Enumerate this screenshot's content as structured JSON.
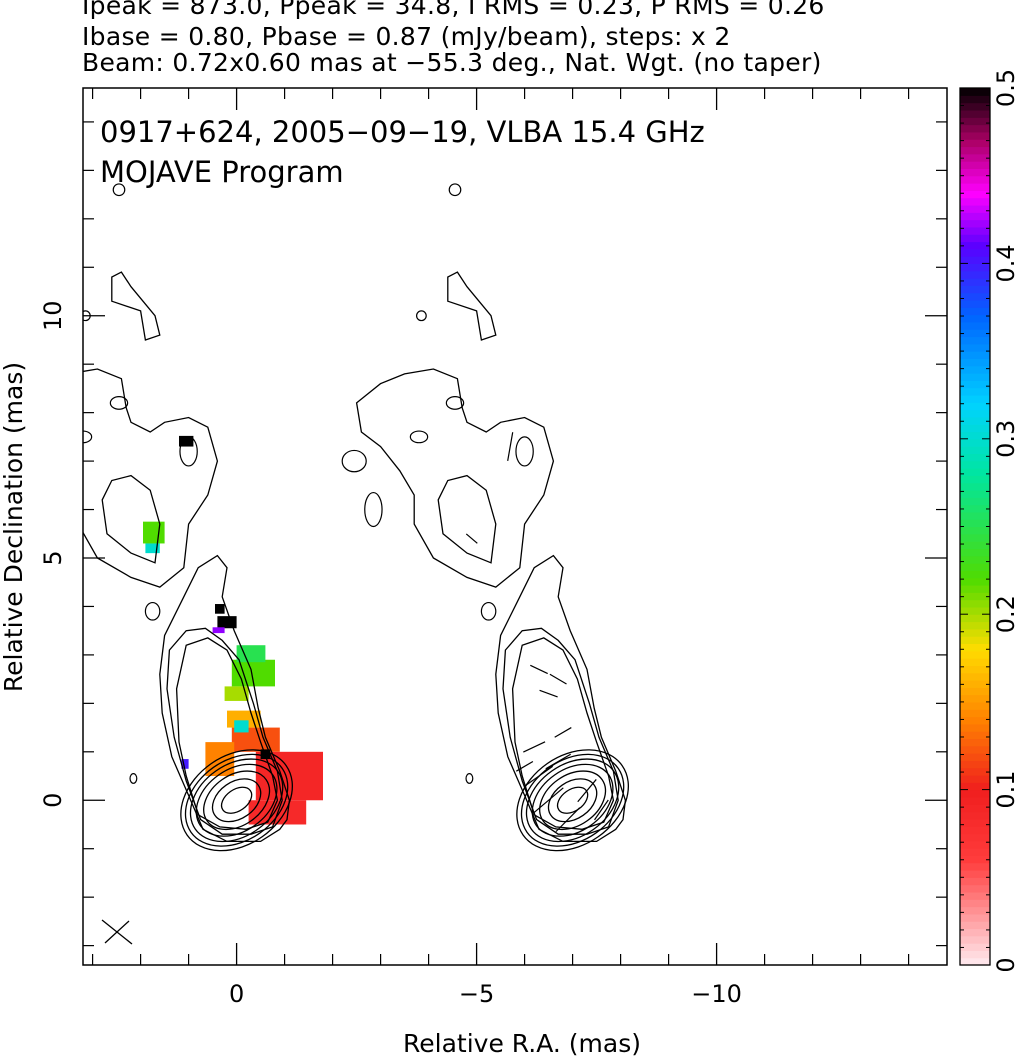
{
  "header": {
    "line1": "Ipeak = 873.0, Ppeak = 34.8, I RMS = 0.23, P RMS = 0.26",
    "line2": "Ibase = 0.80, Pbase = 0.87 (mJy/beam), steps: x 2",
    "line3": "Beam: 0.72x0.60 mas at −55.3 deg., Nat. Wgt. (no taper)"
  },
  "plot_labels": {
    "source": "0917+624, 2005−09−19, VLBA 15.4 GHz",
    "program": "MOJAVE Program"
  },
  "chart_data": {
    "type": "heatmap",
    "xlabel": "Relative R.A. (mas)",
    "ylabel": "Relative Declination (mas)",
    "xlim": [
      3.2,
      -14.8
    ],
    "ylim": [
      -3.4,
      14.7
    ],
    "x_ticks": [
      {
        "value": 0,
        "label": "0"
      },
      {
        "value": -5,
        "label": "−5"
      },
      {
        "value": -10,
        "label": "−10"
      }
    ],
    "y_ticks": [
      {
        "value": 0,
        "label": "0"
      },
      {
        "value": 5,
        "label": "5"
      },
      {
        "value": 10,
        "label": "10"
      }
    ],
    "colorbar": {
      "min": 0,
      "max": 0.5,
      "ticks": [
        {
          "value": 0,
          "label": "0"
        },
        {
          "value": 0.1,
          "label": "0.1"
        },
        {
          "value": 0.2,
          "label": "0.2"
        },
        {
          "value": 0.3,
          "label": "0.3"
        },
        {
          "value": 0.4,
          "label": "0.4"
        },
        {
          "value": 0.5,
          "label": "0.5"
        }
      ]
    },
    "panel_offset_x": -7,
    "core_contour_levels": [
      {
        "a": 0.35,
        "b": 0.22
      },
      {
        "a": 0.55,
        "b": 0.38
      },
      {
        "a": 0.75,
        "b": 0.52
      },
      {
        "a": 0.92,
        "b": 0.64
      },
      {
        "a": 1.05,
        "b": 0.74
      },
      {
        "a": 1.16,
        "b": 0.83
      },
      {
        "a": 1.26,
        "b": 0.92
      }
    ],
    "jet_contours": [
      [
        [
          -0.9,
          -0.6
        ],
        [
          -0.5,
          -0.85
        ],
        [
          0.2,
          -0.85
        ],
        [
          0.7,
          -0.6
        ],
        [
          1.0,
          0.1
        ],
        [
          1.35,
          0.9
        ],
        [
          1.55,
          1.8
        ],
        [
          1.6,
          2.6
        ],
        [
          1.5,
          3.4
        ],
        [
          1.1,
          4.2
        ],
        [
          0.8,
          4.8
        ],
        [
          0.4,
          5.05
        ],
        [
          0.2,
          4.8
        ],
        [
          0.3,
          4.2
        ],
        [
          0.05,
          3.5
        ],
        [
          -0.3,
          2.7
        ],
        [
          -0.45,
          1.9
        ],
        [
          -0.6,
          1.3
        ],
        [
          -0.9,
          0.6
        ],
        [
          -1.1,
          0.0
        ],
        [
          -1.05,
          -0.4
        ]
      ],
      [
        [
          -0.75,
          -0.55
        ],
        [
          -0.3,
          -0.7
        ],
        [
          0.3,
          -0.7
        ],
        [
          0.75,
          -0.4
        ],
        [
          1.05,
          0.4
        ],
        [
          1.3,
          1.3
        ],
        [
          1.45,
          2.3
        ],
        [
          1.4,
          3.1
        ],
        [
          1.05,
          3.5
        ],
        [
          0.65,
          3.55
        ],
        [
          0.3,
          3.3
        ],
        [
          -0.05,
          2.9
        ],
        [
          -0.35,
          2.0
        ],
        [
          -0.55,
          1.3
        ],
        [
          -0.85,
          0.6
        ],
        [
          -0.95,
          0.0
        ]
      ],
      [
        [
          -0.65,
          -0.45
        ],
        [
          -0.2,
          -0.6
        ],
        [
          0.35,
          -0.55
        ],
        [
          0.8,
          -0.3
        ],
        [
          1.05,
          0.5
        ],
        [
          1.2,
          1.2
        ],
        [
          1.25,
          2.3
        ],
        [
          1.05,
          3.2
        ],
        [
          0.6,
          3.35
        ],
        [
          0.2,
          3.1
        ],
        [
          -0.1,
          2.5
        ],
        [
          -0.3,
          1.8
        ],
        [
          -0.5,
          1.2
        ],
        [
          -0.75,
          0.5
        ],
        [
          -0.85,
          0.0
        ]
      ],
      [
        [
          1.1,
          4.8
        ],
        [
          1.6,
          4.4
        ],
        [
          2.2,
          4.6
        ],
        [
          2.9,
          5.0
        ],
        [
          3.3,
          5.7
        ],
        [
          3.3,
          6.3
        ],
        [
          3.6,
          6.8
        ],
        [
          4.0,
          7.3
        ],
        [
          4.4,
          7.6
        ],
        [
          4.5,
          8.2
        ],
        [
          4.0,
          8.6
        ],
        [
          3.5,
          8.8
        ],
        [
          2.9,
          8.9
        ],
        [
          2.4,
          8.7
        ],
        [
          2.3,
          8.1
        ],
        [
          2.2,
          7.8
        ],
        [
          1.8,
          7.6
        ],
        [
          1.5,
          7.8
        ],
        [
          1.0,
          7.9
        ],
        [
          0.6,
          7.7
        ],
        [
          0.4,
          7.0
        ],
        [
          0.6,
          6.3
        ],
        [
          1.0,
          5.7
        ]
      ],
      [
        [
          1.7,
          4.9
        ],
        [
          2.2,
          5.1
        ],
        [
          2.7,
          5.5
        ],
        [
          2.8,
          6.2
        ],
        [
          2.6,
          6.6
        ],
        [
          2.2,
          6.7
        ],
        [
          1.8,
          6.4
        ],
        [
          1.6,
          5.7
        ]
      ],
      [
        [
          2.0,
          10.1
        ],
        [
          2.6,
          10.3
        ],
        [
          2.6,
          10.8
        ],
        [
          2.4,
          10.9
        ],
        [
          2.2,
          10.6
        ],
        [
          1.7,
          10.0
        ],
        [
          1.6,
          9.6
        ],
        [
          1.9,
          9.5
        ]
      ]
    ],
    "small_islands": [
      {
        "x": 1.0,
        "y": 7.2,
        "rx": 0.18,
        "ry": 0.3
      },
      {
        "x": 2.45,
        "y": 8.2,
        "rx": 0.18,
        "ry": 0.13
      },
      {
        "x": 3.2,
        "y": 7.5,
        "rx": 0.18,
        "ry": 0.12
      },
      {
        "x": 4.55,
        "y": 7.0,
        "rx": 0.25,
        "ry": 0.22
      },
      {
        "x": 4.15,
        "y": 6.0,
        "rx": 0.18,
        "ry": 0.35
      },
      {
        "x": 1.75,
        "y": 3.9,
        "rx": 0.15,
        "ry": 0.18
      },
      {
        "x": 3.15,
        "y": 10.0,
        "rx": 0.1,
        "ry": 0.1
      },
      {
        "x": 2.45,
        "y": 12.6,
        "rx": 0.12,
        "ry": 0.12
      },
      {
        "x": 2.15,
        "y": 0.45,
        "rx": 0.07,
        "ry": 0.1
      }
    ],
    "pol_pixels": [
      {
        "x": -0.4,
        "y": 0.0,
        "w": 1.4,
        "h": 1.0,
        "value": 0.09
      },
      {
        "x": -0.25,
        "y": -0.5,
        "w": 1.2,
        "h": 0.5,
        "value": 0.085
      },
      {
        "x": 0.1,
        "y": 1.0,
        "w": 1.0,
        "h": 0.5,
        "value": 0.12
      },
      {
        "x": 0.2,
        "y": 1.5,
        "w": 0.7,
        "h": 0.35,
        "value": 0.16
      },
      {
        "x": 0.65,
        "y": 0.5,
        "w": 0.6,
        "h": 0.7,
        "value": 0.14
      },
      {
        "x": 0.05,
        "y": 1.4,
        "w": 0.3,
        "h": 0.25,
        "value": 0.3
      },
      {
        "x": 0.1,
        "y": 2.35,
        "w": 0.9,
        "h": 0.55,
        "value": 0.22
      },
      {
        "x": 0.0,
        "y": 2.85,
        "w": 0.6,
        "h": 0.35,
        "value": 0.25
      },
      {
        "x": 0.25,
        "y": 2.05,
        "w": 0.5,
        "h": 0.3,
        "value": 0.2
      },
      {
        "x": 0.4,
        "y": 3.55,
        "w": 0.4,
        "h": 0.25,
        "value": 0.5
      },
      {
        "x": 0.45,
        "y": 3.85,
        "w": 0.2,
        "h": 0.2,
        "value": 0.5
      },
      {
        "x": 0.5,
        "y": 3.45,
        "w": 0.25,
        "h": 0.12,
        "value": 0.42
      },
      {
        "x": -0.5,
        "y": 0.85,
        "w": 0.2,
        "h": 0.2,
        "value": 0.5
      },
      {
        "x": 1.2,
        "y": 7.3,
        "w": 0.3,
        "h": 0.22,
        "value": 0.5
      },
      {
        "x": 1.95,
        "y": 5.3,
        "w": 0.45,
        "h": 0.45,
        "value": 0.22
      },
      {
        "x": 1.9,
        "y": 5.1,
        "w": 0.3,
        "h": 0.2,
        "value": 0.3
      },
      {
        "x": 1.15,
        "y": 0.65,
        "w": 0.15,
        "h": 0.2,
        "value": 0.4
      }
    ],
    "evpa_sticks": [
      {
        "x": 0.1,
        "y": -0.4,
        "angle": 45,
        "len": 0.7
      },
      {
        "x": 0.5,
        "y": 0.0,
        "angle": 40,
        "len": 0.8
      },
      {
        "x": 0.7,
        "y": 0.5,
        "angle": 35,
        "len": 0.7
      },
      {
        "x": -0.3,
        "y": 0.2,
        "angle": 50,
        "len": 0.6
      },
      {
        "x": 0.3,
        "y": 0.8,
        "angle": 30,
        "len": 0.6
      },
      {
        "x": 0.8,
        "y": 1.1,
        "angle": 25,
        "len": 0.5
      },
      {
        "x": -0.6,
        "y": -0.2,
        "angle": 55,
        "len": 0.5
      },
      {
        "x": 0.2,
        "y": 1.4,
        "angle": 30,
        "len": 0.4
      },
      {
        "x": 1.0,
        "y": 0.7,
        "angle": 30,
        "len": 0.4
      },
      {
        "x": 0.3,
        "y": 2.5,
        "angle": -30,
        "len": 0.4
      },
      {
        "x": 0.7,
        "y": 2.7,
        "angle": -25,
        "len": 0.4
      },
      {
        "x": 0.5,
        "y": 2.2,
        "angle": -20,
        "len": 0.4
      },
      {
        "x": 1.3,
        "y": 7.3,
        "angle": 80,
        "len": 0.6
      },
      {
        "x": 2.1,
        "y": 5.4,
        "angle": -40,
        "len": 0.3
      }
    ]
  }
}
